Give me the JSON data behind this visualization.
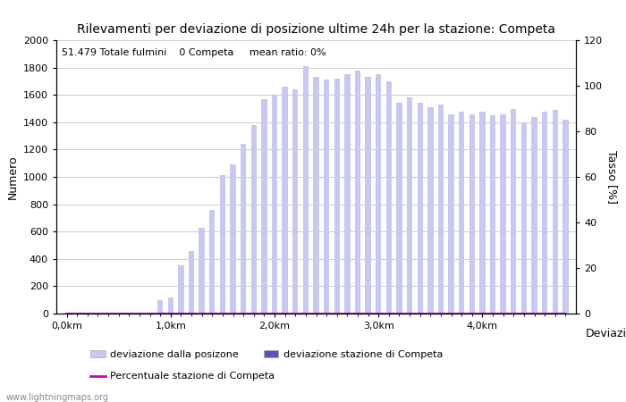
{
  "title": "Rilevamenti per deviazione di posizione ultime 24h per la stazione: Competa",
  "subtitle": "51.479 Totale fulmini    0 Competa     mean ratio: 0%",
  "ylabel_left": "Numero",
  "ylabel_right": "Tasso [%]",
  "xlabel": "Deviazioni",
  "xtick_labels": [
    "0,0km",
    "1,0km",
    "2,0km",
    "3,0km",
    "4,0km"
  ],
  "xtick_positions": [
    0,
    10,
    20,
    30,
    40
  ],
  "ylim_left": [
    0,
    2000
  ],
  "ylim_right": [
    0,
    120
  ],
  "yticks_left": [
    0,
    200,
    400,
    600,
    800,
    1000,
    1200,
    1400,
    1600,
    1800,
    2000
  ],
  "yticks_right": [
    0,
    20,
    40,
    60,
    80,
    100,
    120
  ],
  "bar_color_light": "#c8c8f0",
  "bar_color_dark": "#5555bb",
  "line_color": "#cc00cc",
  "background_color": "#ffffff",
  "grid_color": "#bbbbbb",
  "watermark": "www.lightningmaps.org",
  "bar_values": [
    5,
    8,
    5,
    3,
    5,
    5,
    3,
    5,
    8,
    100,
    120,
    350,
    460,
    630,
    760,
    1010,
    1090,
    1240,
    1380,
    1570,
    1600,
    1660,
    1640,
    1810,
    1730,
    1710,
    1720,
    1750,
    1780,
    1730,
    1750,
    1700,
    1540,
    1580,
    1540,
    1510,
    1530,
    1460,
    1480,
    1460,
    1480,
    1450,
    1460,
    1500,
    1400,
    1440,
    1480,
    1490,
    1420
  ],
  "bar_values_station": [
    0,
    0,
    0,
    0,
    0,
    0,
    0,
    0,
    0,
    0,
    0,
    0,
    0,
    0,
    0,
    0,
    0,
    0,
    0,
    0,
    0,
    0,
    0,
    0,
    0,
    0,
    0,
    0,
    0,
    0,
    0,
    0,
    0,
    0,
    0,
    0,
    0,
    0,
    0,
    0,
    0,
    0,
    0,
    0,
    0,
    0,
    0,
    0,
    0
  ],
  "ratio_values": [
    0,
    0,
    0,
    0,
    0,
    0,
    0,
    0,
    0,
    0,
    0,
    0,
    0,
    0,
    0,
    0,
    0,
    0,
    0,
    0,
    0,
    0,
    0,
    0,
    0,
    0,
    0,
    0,
    0,
    0,
    0,
    0,
    0,
    0,
    0,
    0,
    0,
    0,
    0,
    0,
    0,
    0,
    0,
    0,
    0,
    0,
    0,
    0,
    0
  ],
  "legend_light_label": "deviazione dalla posizone",
  "legend_dark_label": "deviazione stazione di Competa",
  "legend_line_label": "Percentuale stazione di Competa",
  "fig_width": 7.0,
  "fig_height": 4.5,
  "dpi": 100
}
